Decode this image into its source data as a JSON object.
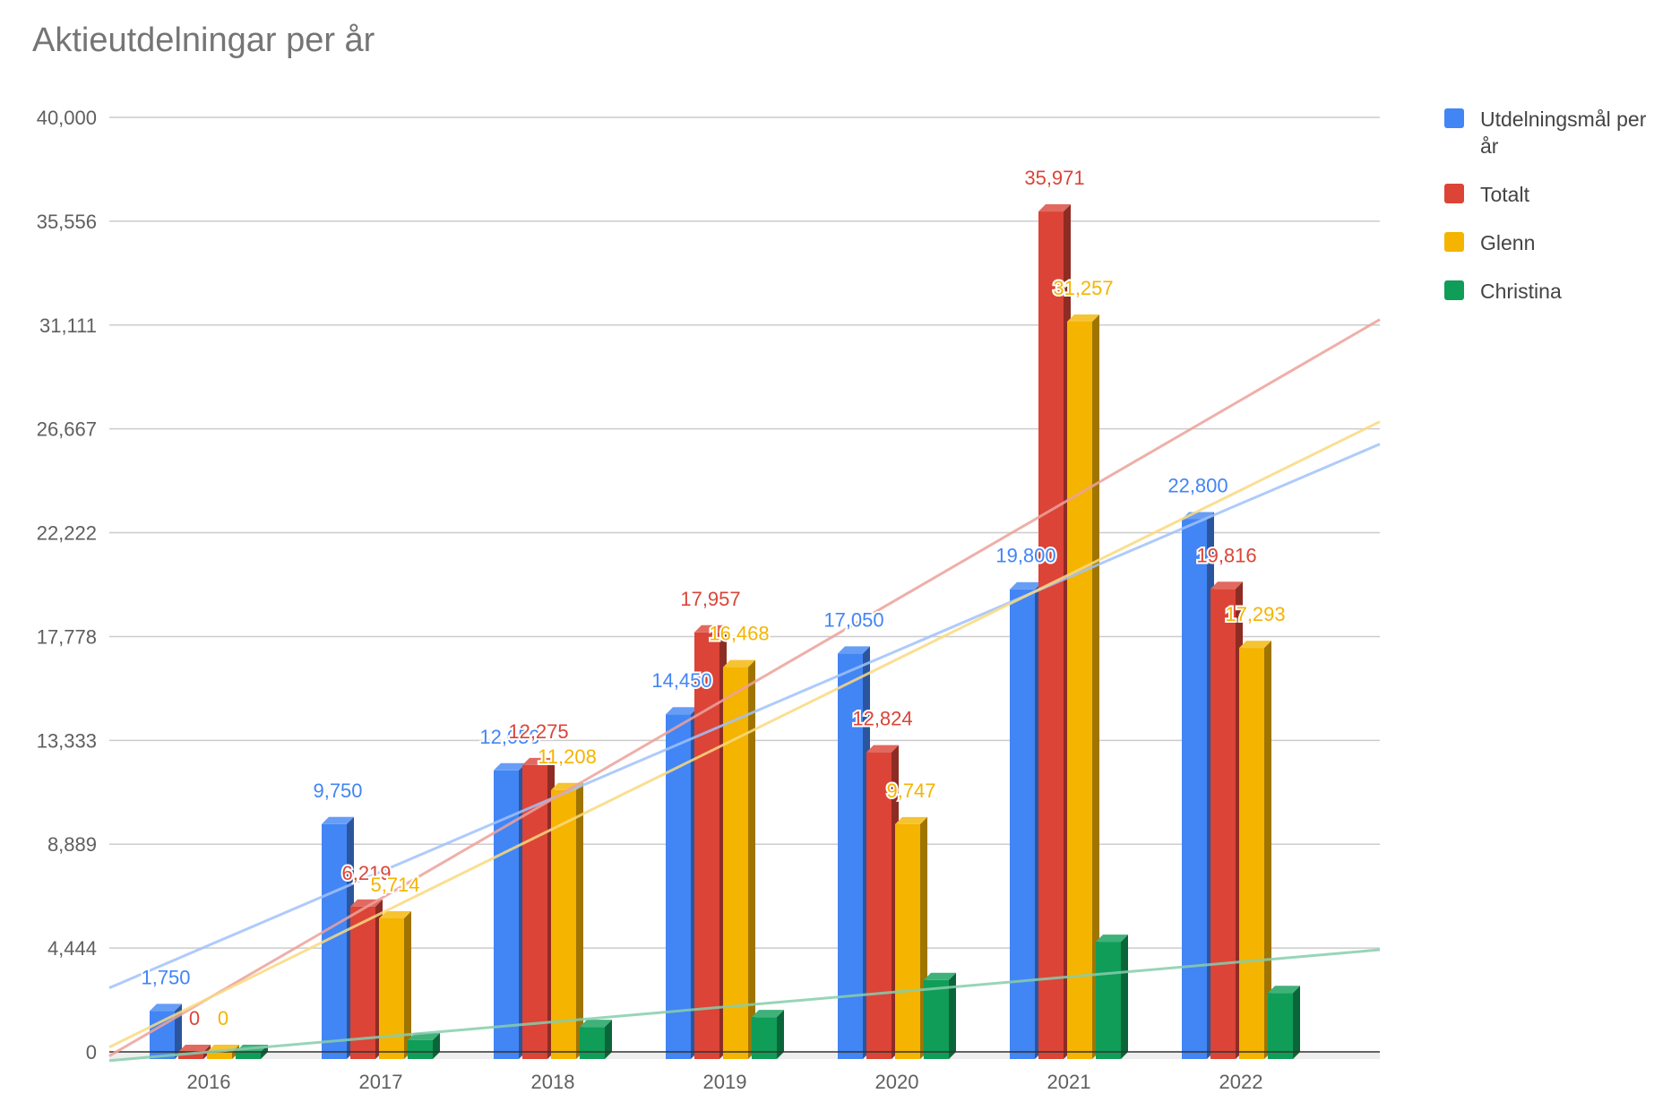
{
  "chart_data": {
    "type": "bar",
    "title": "Aktieutdelningar per år",
    "categories": [
      "2016",
      "2017",
      "2018",
      "2019",
      "2020",
      "2021",
      "2022"
    ],
    "yticks": [
      "0",
      "4,444",
      "8,889",
      "13,333",
      "17,778",
      "22,222",
      "26,667",
      "31,111",
      "35,556",
      "40,000"
    ],
    "ylim": [
      0,
      40000
    ],
    "grid": true,
    "legend_position": "right",
    "trendlines": true,
    "series": [
      {
        "name": "Utdelningsmål per år",
        "color": "#4285F4",
        "values": [
          1750,
          9750,
          12050,
          14450,
          17050,
          19800,
          22800
        ],
        "labels": [
          "1,750",
          "9,750",
          "12,050",
          "14,450",
          "17,050",
          "19,800",
          "22,800"
        ]
      },
      {
        "name": "Totalt",
        "color": "#DB4437",
        "values": [
          0,
          6219,
          12275,
          17957,
          12824,
          35971,
          19816
        ],
        "labels": [
          "0",
          "6,219",
          "12,275",
          "17,957",
          "12,824",
          "35,971",
          "19,816"
        ]
      },
      {
        "name": "Glenn",
        "color": "#F4B400",
        "values": [
          0,
          5714,
          11208,
          16468,
          9747,
          31257,
          17293
        ],
        "labels": [
          "0",
          "5,714",
          "11,208",
          "16,468",
          "9,747",
          "31,257",
          "17,293"
        ]
      },
      {
        "name": "Christina",
        "color": "#0F9D58",
        "values": [
          0,
          505,
          1067,
          1489,
          3077,
          4714,
          2523
        ],
        "labels": []
      }
    ]
  }
}
